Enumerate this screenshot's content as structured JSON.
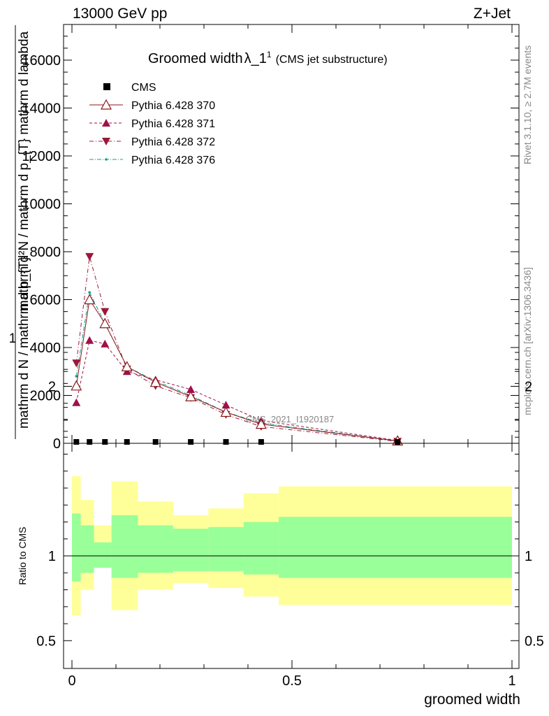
{
  "header": {
    "energy": "13000 GeV pp",
    "process": "Z+Jet"
  },
  "title": {
    "main": "Groomed width",
    "lambda": "λ_1",
    "superscript": "1",
    "sub": "(CMS jet substructure)"
  },
  "side": {
    "rivet": "Rivet 3.1.10, ≥ 2.7M events",
    "mcplots": "mcplots.cern.ch [arXiv:1306.3436]"
  },
  "watermark": "CMS_2021_I1920187",
  "colors": {
    "cms": "#000000",
    "p370": "#8b1a1a",
    "p371": "#a0104a",
    "p372": "#9b1838",
    "p376": "#1a9c8a",
    "band_inner": "#99ff99",
    "band_outer": "#ffff99"
  },
  "chart_data": [
    {
      "type": "line",
      "title": "Groomed width λ_1^1 (CMS jet substructure)",
      "xlabel": "",
      "ylabel_numerator": "1",
      "ylabel_denominator": "mathrm d N / mathrm d p_{T}",
      "ylabel_right": "mathrm d²N / mathrm d p_{T} mathrm d lambda",
      "ylim": [
        0,
        17500
      ],
      "xlim": [
        -0.02,
        1.02
      ],
      "yticks": [
        0,
        2000,
        4000,
        6000,
        8000,
        10000,
        12000,
        14000,
        16000
      ],
      "ytick_labels": [
        "0",
        "2000",
        "4000",
        "6000",
        "8000",
        "10000",
        "12000",
        "14000",
        "16000"
      ],
      "x": [
        0.01,
        0.04,
        0.075,
        0.125,
        0.19,
        0.27,
        0.35,
        0.43,
        0.74
      ],
      "series": [
        {
          "name": "CMS",
          "marker": "square",
          "values": [
            0,
            0,
            0,
            0,
            0,
            0,
            0,
            0,
            0
          ]
        },
        {
          "name": "Pythia 6.428 370",
          "marker": "triangle-up-open",
          "values": [
            2400,
            6000,
            5000,
            3200,
            2550,
            1950,
            1300,
            800,
            100
          ]
        },
        {
          "name": "Pythia 6.428 371",
          "marker": "triangle-up",
          "values": [
            1700,
            4300,
            4150,
            3000,
            2650,
            2250,
            1600,
            950,
            120
          ]
        },
        {
          "name": "Pythia 6.428 372",
          "marker": "triangle-down",
          "values": [
            3350,
            7800,
            5500,
            3100,
            2400,
            1900,
            1200,
            700,
            80
          ]
        },
        {
          "name": "Pythia 6.428 376",
          "marker": "dot",
          "values": [
            2800,
            6300,
            5000,
            3200,
            2600,
            2000,
            1300,
            850,
            100
          ]
        }
      ],
      "legend": "top-left"
    },
    {
      "type": "area",
      "ylabel": "Ratio to CMS",
      "xlabel": "groomed width",
      "ylim": [
        0.3,
        2.3
      ],
      "yticks": [
        0.5,
        1,
        2
      ],
      "ytick_labels": [
        "0.5",
        "1",
        "2"
      ],
      "xticks": [
        0,
        0.5,
        1
      ],
      "xtick_labels": [
        "0",
        "0.5",
        "1"
      ],
      "bins": [
        {
          "lo": 0.0,
          "hi": 0.02,
          "inner": [
            0.85,
            1.25
          ],
          "outer": [
            0.65,
            1.47
          ]
        },
        {
          "lo": 0.02,
          "hi": 0.05,
          "inner": [
            0.9,
            1.18
          ],
          "outer": [
            0.8,
            1.33
          ]
        },
        {
          "lo": 0.05,
          "hi": 0.09,
          "inner": [
            0.93,
            1.08
          ],
          "outer": [
            0.93,
            1.18
          ]
        },
        {
          "lo": 0.09,
          "hi": 0.15,
          "inner": [
            0.87,
            1.24
          ],
          "outer": [
            0.68,
            1.44
          ]
        },
        {
          "lo": 0.15,
          "hi": 0.23,
          "inner": [
            0.9,
            1.18
          ],
          "outer": [
            0.8,
            1.32
          ]
        },
        {
          "lo": 0.23,
          "hi": 0.31,
          "inner": [
            0.91,
            1.16
          ],
          "outer": [
            0.84,
            1.24
          ]
        },
        {
          "lo": 0.31,
          "hi": 0.39,
          "inner": [
            0.91,
            1.17
          ],
          "outer": [
            0.81,
            1.28
          ]
        },
        {
          "lo": 0.39,
          "hi": 0.47,
          "inner": [
            0.89,
            1.2
          ],
          "outer": [
            0.76,
            1.37
          ]
        },
        {
          "lo": 0.47,
          "hi": 1.0,
          "inner": [
            0.87,
            1.23
          ],
          "outer": [
            0.71,
            1.41
          ]
        }
      ]
    }
  ]
}
